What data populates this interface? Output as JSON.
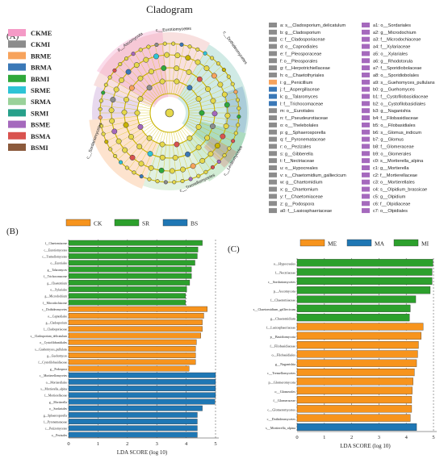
{
  "panel_labels": {
    "a": "(A)",
    "b": "(B)",
    "c": "(C)"
  },
  "cladogram": {
    "title": "Cladogram",
    "groups": [
      {
        "name": "CKME",
        "color": "#f49ac6"
      },
      {
        "name": "CKMI",
        "color": "#8c8c8c"
      },
      {
        "name": "BRME",
        "color": "#f7a35c"
      },
      {
        "name": "BRMA",
        "color": "#3a78b7"
      },
      {
        "name": "BRMI",
        "color": "#2fa83b"
      },
      {
        "name": "SRME",
        "color": "#2ec4d6"
      },
      {
        "name": "SRMA",
        "color": "#9ad29a"
      },
      {
        "name": "SRMI",
        "color": "#27a08a"
      },
      {
        "name": "BSME",
        "color": "#a569bd"
      },
      {
        "name": "BSMA",
        "color": "#d9534f"
      },
      {
        "name": "BSMI",
        "color": "#8b5a3c"
      }
    ],
    "clade_labels": [
      {
        "text": "p__Ascomycota",
        "color": "#2fa83b"
      },
      {
        "text": "c__Eurotiomycetes",
        "color": "#d9534f"
      },
      {
        "text": "c__Dothideomycetes",
        "color": "#f7a35c"
      },
      {
        "text": "c__Tremellomycetes",
        "color": "#2fa83b"
      },
      {
        "text": "c__Sordariomycetes",
        "color": "#2ec4d6"
      },
      {
        "text": "c__Leotiomycetes",
        "color": "#a569bd"
      }
    ],
    "legend_col1": [
      {
        "key": "a: s__Cladosporium_delicatulum",
        "color": "#8c8c8c"
      },
      {
        "key": "b: g__Cladosporium",
        "color": "#8c8c8c"
      },
      {
        "key": "c: f__Cladosporiaceae",
        "color": "#8c8c8c"
      },
      {
        "key": "d: o__Capnodiales",
        "color": "#8c8c8c"
      },
      {
        "key": "e: f__Pleosporaceae",
        "color": "#8c8c8c"
      },
      {
        "key": "f: o__Pleosporales",
        "color": "#8c8c8c"
      },
      {
        "key": "g: f__Herpotrichiellaceae",
        "color": "#8c8c8c"
      },
      {
        "key": "h: o__Chaetothyriales",
        "color": "#8c8c8c"
      },
      {
        "key": "i: g__Penicillium",
        "color": "#f7a35c"
      },
      {
        "key": "j: f__Aspergillaceae",
        "color": "#3a78b7"
      },
      {
        "key": "k: g__Talaromyces",
        "color": "#3a78b7"
      },
      {
        "key": "l: f__Trichocomaceae",
        "color": "#3a78b7"
      },
      {
        "key": "m: o__Eurotiales",
        "color": "#8c8c8c"
      },
      {
        "key": "n: f__Pseudeurotiaceae",
        "color": "#8c8c8c"
      },
      {
        "key": "o: o__Thelebolales",
        "color": "#8c8c8c"
      },
      {
        "key": "p: g__Sphaerosporella",
        "color": "#8c8c8c"
      },
      {
        "key": "q: f__Pyronemataceae",
        "color": "#8c8c8c"
      },
      {
        "key": "r: o__Pezizales",
        "color": "#8c8c8c"
      },
      {
        "key": "s: g__Gibberella",
        "color": "#8c8c8c"
      },
      {
        "key": "t: f__Nectriaceae",
        "color": "#8c8c8c"
      },
      {
        "key": "u: o__Hypocreales",
        "color": "#8c8c8c"
      },
      {
        "key": "v: s__Chaetomidium_galliecicum",
        "color": "#8c8c8c"
      },
      {
        "key": "w: g__Chaetomidium",
        "color": "#8c8c8c"
      },
      {
        "key": "x: g__Chaetomium",
        "color": "#8c8c8c"
      },
      {
        "key": "y: f__Chaetomiaceae",
        "color": "#8c8c8c"
      },
      {
        "key": "z: g__Podospora",
        "color": "#8c8c8c"
      },
      {
        "key": "a0: f__Lasiosphaeriaceae",
        "color": "#8c8c8c"
      }
    ],
    "legend_col2": [
      {
        "key": "a1: o__Sordariales",
        "color": "#a569bd"
      },
      {
        "key": "a2: g__Microdochium",
        "color": "#a569bd"
      },
      {
        "key": "a3: f__Microdochiaceae",
        "color": "#a569bd"
      },
      {
        "key": "a4: f__Xylariaceae",
        "color": "#a569bd"
      },
      {
        "key": "a5: o__Xylariales",
        "color": "#a569bd"
      },
      {
        "key": "a6: g__Rhodotorula",
        "color": "#a569bd"
      },
      {
        "key": "a7: f__Sporidiobolaceae",
        "color": "#a569bd"
      },
      {
        "key": "a8: o__Sporidiobolales",
        "color": "#a569bd"
      },
      {
        "key": "a9: s__Guehomyces_pullulans",
        "color": "#a569bd"
      },
      {
        "key": "b0: g__Guehomyces",
        "color": "#a569bd"
      },
      {
        "key": "b1: f__Cystofilobasidiaceae",
        "color": "#a569bd"
      },
      {
        "key": "b2: o__Cystofilobasidiales",
        "color": "#a569bd"
      },
      {
        "key": "b3: g__Naganishia",
        "color": "#a569bd"
      },
      {
        "key": "b4: f__Filobasidiaceae",
        "color": "#a569bd"
      },
      {
        "key": "b5: o__Filobasidiales",
        "color": "#a569bd"
      },
      {
        "key": "b6: s__Glomus_indicum",
        "color": "#a569bd"
      },
      {
        "key": "b7: g__Glomus",
        "color": "#a569bd"
      },
      {
        "key": "b8: f__Glomeraceae",
        "color": "#a569bd"
      },
      {
        "key": "b9: o__Glomerales",
        "color": "#a569bd"
      },
      {
        "key": "c0: s__Mortierella_alpina",
        "color": "#a569bd"
      },
      {
        "key": "c1: g__Mortierella",
        "color": "#a569bd"
      },
      {
        "key": "c2: f__Mortierellaceae",
        "color": "#a569bd"
      },
      {
        "key": "c3: o__Mortierellales",
        "color": "#a569bd"
      },
      {
        "key": "c4: s__Olpidium_brassicae",
        "color": "#a569bd"
      },
      {
        "key": "c5: g__Olpidium",
        "color": "#a569bd"
      },
      {
        "key": "c6: f__Olpidiaceae",
        "color": "#a569bd"
      },
      {
        "key": "c7: o__Olpidiales",
        "color": "#a569bd"
      }
    ]
  },
  "chart_data": [
    {
      "type": "bar",
      "orientation": "horizontal",
      "panel": "B",
      "xlabel": "LDA SCORE (log 10)",
      "xlim": [
        0,
        5
      ],
      "xticks": [
        0,
        1,
        2,
        3,
        4,
        5
      ],
      "legend": [
        {
          "name": "CK",
          "color": "#f7941d"
        },
        {
          "name": "SR",
          "color": "#2ca02c"
        },
        {
          "name": "BS",
          "color": "#1f77b4"
        }
      ],
      "bars": [
        {
          "label": "f__Chaetomiaceae",
          "value": 4.55,
          "group": "SR"
        },
        {
          "label": "c__Eurotiomycetes",
          "value": 4.4,
          "group": "SR"
        },
        {
          "label": "c__Tremellomycetes",
          "value": 4.38,
          "group": "SR"
        },
        {
          "label": "o__Eurotiales",
          "value": 4.3,
          "group": "SR"
        },
        {
          "label": "g__Talaromyces",
          "value": 4.18,
          "group": "SR"
        },
        {
          "label": "f__Trichocomaceae",
          "value": 4.18,
          "group": "SR"
        },
        {
          "label": "g__Chaetomium",
          "value": 4.12,
          "group": "SR"
        },
        {
          "label": "o__Xylariales",
          "value": 4.02,
          "group": "SR"
        },
        {
          "label": "g__Microdochium",
          "value": 3.98,
          "group": "SR"
        },
        {
          "label": "f__Microdochiaceae",
          "value": 3.98,
          "group": "SR"
        },
        {
          "label": "c__Dothideomycetes",
          "value": 4.72,
          "group": "CK"
        },
        {
          "label": "o__Capnodiales",
          "value": 4.6,
          "group": "CK"
        },
        {
          "label": "g__Cladosporium",
          "value": 4.55,
          "group": "CK"
        },
        {
          "label": "f__Cladosporiaceae",
          "value": 4.55,
          "group": "CK"
        },
        {
          "label": "s__Cladosporium_delicatulum",
          "value": 4.5,
          "group": "CK"
        },
        {
          "label": "o__Cystofilobasidiales",
          "value": 4.35,
          "group": "CK"
        },
        {
          "label": "s__Guehomyces_pullulans",
          "value": 4.32,
          "group": "CK"
        },
        {
          "label": "g__Guehomyces",
          "value": 4.32,
          "group": "CK"
        },
        {
          "label": "f__Cystofilobasidiaceae",
          "value": 4.32,
          "group": "CK"
        },
        {
          "label": "g__Podospora",
          "value": 4.1,
          "group": "CK"
        },
        {
          "label": "c__Mortierellomycetes",
          "value": 5.0,
          "group": "BS"
        },
        {
          "label": "o__Mortierellales",
          "value": 5.0,
          "group": "BS"
        },
        {
          "label": "s__Mortierella_alpina",
          "value": 5.0,
          "group": "BS"
        },
        {
          "label": "f__Mortierellaceae",
          "value": 5.0,
          "group": "BS"
        },
        {
          "label": "g__Mortierella",
          "value": 4.98,
          "group": "BS"
        },
        {
          "label": "o__Sordariales",
          "value": 4.55,
          "group": "BS"
        },
        {
          "label": "g__Sphaerosporella",
          "value": 4.38,
          "group": "BS"
        },
        {
          "label": "f__Pyronemataceae",
          "value": 4.38,
          "group": "BS"
        },
        {
          "label": "c__Pezizomycetes",
          "value": 4.38,
          "group": "BS"
        },
        {
          "label": "o__Pezizales",
          "value": 4.38,
          "group": "BS"
        }
      ]
    },
    {
      "type": "bar",
      "orientation": "horizontal",
      "panel": "C",
      "xlabel": "LDA SCORE (log 10)",
      "xlim": [
        0,
        5
      ],
      "xticks": [
        0,
        1,
        2,
        3,
        4,
        5
      ],
      "legend": [
        {
          "name": "ME",
          "color": "#f7941d"
        },
        {
          "name": "MA",
          "color": "#1f77b4"
        },
        {
          "name": "MI",
          "color": "#2ca02c"
        }
      ],
      "bars": [
        {
          "label": "o__Hypocreales",
          "value": 4.98,
          "group": "MI"
        },
        {
          "label": "f__Nectriaceae",
          "value": 4.95,
          "group": "MI"
        },
        {
          "label": "c__Sordariomycetes",
          "value": 4.95,
          "group": "MI"
        },
        {
          "label": "p__Ascomycota",
          "value": 4.88,
          "group": "MI"
        },
        {
          "label": "f__Chaetomiaceae",
          "value": 4.35,
          "group": "MI"
        },
        {
          "label": "s__Chaetomidium_galliecicum",
          "value": 4.15,
          "group": "MI"
        },
        {
          "label": "g__Chaetomidium",
          "value": 4.12,
          "group": "MI"
        },
        {
          "label": "f__Lasiosphaeriaceae",
          "value": 4.62,
          "group": "ME"
        },
        {
          "label": "p__Basidiomycota",
          "value": 4.55,
          "group": "ME"
        },
        {
          "label": "f__Filobasidiaceae",
          "value": 4.45,
          "group": "ME"
        },
        {
          "label": "o__Filobasidiales",
          "value": 4.42,
          "group": "ME"
        },
        {
          "label": "g__Naganishia",
          "value": 4.38,
          "group": "ME"
        },
        {
          "label": "c__Tremellomycetes",
          "value": 4.3,
          "group": "ME"
        },
        {
          "label": "p__Glomeromycota",
          "value": 4.25,
          "group": "ME"
        },
        {
          "label": "o__Glomerales",
          "value": 4.22,
          "group": "ME"
        },
        {
          "label": "f__Glomeraceae",
          "value": 4.2,
          "group": "ME"
        },
        {
          "label": "c__Glomeromycetes",
          "value": 4.2,
          "group": "ME"
        },
        {
          "label": "c__Dothideomycetes",
          "value": 4.15,
          "group": "ME"
        },
        {
          "label": "s__Mortierella_alpina",
          "value": 4.38,
          "group": "MA"
        }
      ]
    }
  ]
}
